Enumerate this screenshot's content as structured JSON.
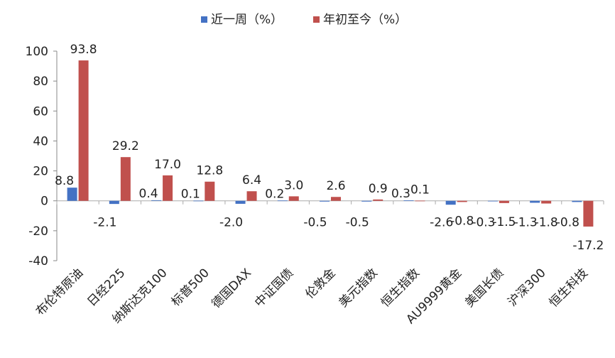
{
  "chart_data": {
    "type": "bar",
    "title": "",
    "xlabel": "",
    "ylabel": "",
    "ylim": [
      -40,
      100
    ],
    "yticks": [
      -40,
      -20,
      0,
      20,
      40,
      60,
      80,
      100
    ],
    "grid": false,
    "legend_position": "top",
    "categories": [
      "布伦特原油",
      "日经225",
      "纳斯达克100",
      "标普500",
      "德国DAX",
      "中证国债",
      "伦敦金",
      "美元指数",
      "恒生指数",
      "AU9999黄金",
      "美国长债",
      "沪深300",
      "恒生科技"
    ],
    "series": [
      {
        "name": "近一周（%）",
        "color": "#4472C4",
        "values": [
          8.8,
          -2.1,
          0.4,
          0.1,
          -2.0,
          0.2,
          -0.5,
          -0.5,
          0.3,
          -2.6,
          -0.3,
          -1.3,
          -0.8
        ],
        "labels": [
          "8.8",
          "-2.1",
          "0.4",
          "0.1",
          "-2.0",
          "0.2",
          "-0.5",
          "-0.5",
          "0.3",
          "-2.6",
          "-0.3",
          "-1.3",
          "-0.8"
        ]
      },
      {
        "name": "年初至今（%）",
        "color": "#C0504D",
        "values": [
          93.8,
          29.2,
          17.0,
          12.8,
          6.4,
          3.0,
          2.6,
          0.9,
          0.1,
          -0.8,
          -1.5,
          -1.8,
          -17.2
        ],
        "labels": [
          "93.8",
          "29.2",
          "17.0",
          "12.8",
          "6.4",
          "3.0",
          "2.6",
          "0.9",
          "0.1",
          "-0.8",
          "-1.5",
          "-1.8",
          "-17.2"
        ]
      }
    ]
  }
}
